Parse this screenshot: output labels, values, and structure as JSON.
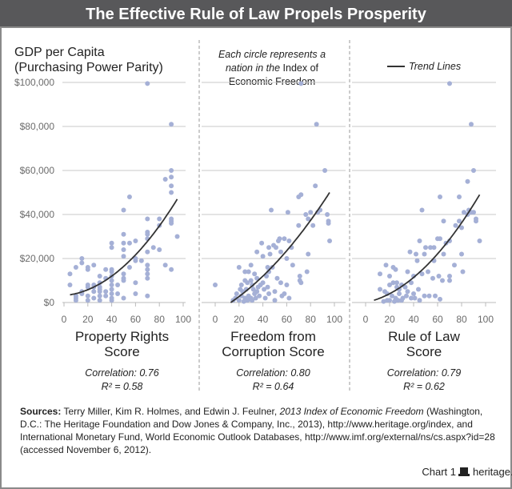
{
  "title": "The Effective Rule of Law Propels Prosperity",
  "colors": {
    "title_bar": "#58585a",
    "dots": "#a5b0d6",
    "trend": "#333333",
    "grid": "#c8c8c8",
    "border": "#8a8a8a"
  },
  "y_axis_label": [
    "GDP per Capita",
    "(Purchasing Power Parity)"
  ],
  "note": {
    "line1": "Each circle represents a",
    "line2_italic": "nation in the ",
    "line2_roman": "Index of",
    "line3": "Economic Freedom"
  },
  "legend": {
    "label": "Trend Lines"
  },
  "sources": {
    "label": "Sources:",
    "text1": " Terry Miller, Kim R. Holmes, and Edwin J. Feulner, ",
    "title": "2013 Index of Economic Freedom",
    "text2": " (Washington, D.C.: The Heritage Foundation and Dow Jones & Company, Inc., 2013), http://www.heritage.org/index, and International Monetary Fund, World Economic Outlook Databases, http://www.imf.org/external/ns/cs.aspx?id=28 (accessed November 6, 2012)."
  },
  "footer": {
    "chart_label": "Chart 1",
    "site": "heritage.org"
  },
  "chart_data": [
    {
      "type": "scatter",
      "xlabel": [
        "Property Rights",
        "Score"
      ],
      "ylabel": "GDP per Capita (Purchasing Power Parity)",
      "correlation": "Correlation: 0.76",
      "r2": "R² = 0.58",
      "xlim": [
        0,
        100
      ],
      "ylim": [
        0,
        100000
      ],
      "x_ticks": [
        "0",
        "20",
        "40",
        "60",
        "80",
        "100"
      ],
      "y_ticks": [
        "$0",
        "$20,000",
        "$40,000",
        "$60,000",
        "$80,000",
        "$100,000"
      ],
      "grid": true,
      "trend": {
        "type": "quadratic",
        "coef": [
          3160,
          46,
          4.37
        ],
        "x_range": [
          5,
          95
        ]
      },
      "points": [
        [
          70,
          99500
        ],
        [
          90,
          81000
        ],
        [
          90,
          60000
        ],
        [
          90,
          57000
        ],
        [
          85,
          56000
        ],
        [
          55,
          48000
        ],
        [
          50,
          42000
        ],
        [
          90,
          53000
        ],
        [
          90,
          50000
        ],
        [
          70,
          38000
        ],
        [
          80,
          38000
        ],
        [
          80,
          35000
        ],
        [
          90,
          38000
        ],
        [
          90,
          37000
        ],
        [
          90,
          36000
        ],
        [
          95,
          30000
        ],
        [
          55,
          27000
        ],
        [
          60,
          28000
        ],
        [
          50,
          31000
        ],
        [
          50,
          27000
        ],
        [
          40,
          27000
        ],
        [
          40,
          25000
        ],
        [
          75,
          25000
        ],
        [
          80,
          24000
        ],
        [
          70,
          31000
        ],
        [
          70,
          32000
        ],
        [
          70,
          29000
        ],
        [
          70,
          23000
        ],
        [
          50,
          24000
        ],
        [
          50,
          21000
        ],
        [
          60,
          20000
        ],
        [
          60,
          19000
        ],
        [
          65,
          19000
        ],
        [
          85,
          17000
        ],
        [
          90,
          15000
        ],
        [
          40,
          15000
        ],
        [
          40,
          14000
        ],
        [
          55,
          16000
        ],
        [
          50,
          13000
        ],
        [
          50,
          11000
        ],
        [
          50,
          10000
        ],
        [
          60,
          9000
        ],
        [
          60,
          4000
        ],
        [
          70,
          17000
        ],
        [
          70,
          15000
        ],
        [
          70,
          13000
        ],
        [
          70,
          11000
        ],
        [
          70,
          3000
        ],
        [
          45,
          8000
        ],
        [
          45,
          4000
        ],
        [
          50,
          2000
        ],
        [
          15,
          20000
        ],
        [
          15,
          18000
        ],
        [
          20,
          16000
        ],
        [
          20,
          15000
        ],
        [
          25,
          17000
        ],
        [
          30,
          12000
        ],
        [
          35,
          11000
        ],
        [
          35,
          15000
        ],
        [
          40,
          12000
        ],
        [
          40,
          10000
        ],
        [
          40,
          8000
        ],
        [
          40,
          6000
        ],
        [
          40,
          4000
        ],
        [
          40,
          2000
        ],
        [
          40,
          1000
        ],
        [
          30,
          9000
        ],
        [
          30,
          7000
        ],
        [
          30,
          5000
        ],
        [
          30,
          3000
        ],
        [
          30,
          1000
        ],
        [
          25,
          8000
        ],
        [
          25,
          7000
        ],
        [
          25,
          5000
        ],
        [
          25,
          2000
        ],
        [
          20,
          8000
        ],
        [
          20,
          7000
        ],
        [
          20,
          3000
        ],
        [
          20,
          1000
        ],
        [
          15,
          5000
        ],
        [
          15,
          4000
        ],
        [
          10,
          2000
        ],
        [
          10,
          1000
        ],
        [
          10,
          3000
        ],
        [
          35,
          5000
        ],
        [
          35,
          3000
        ],
        [
          5,
          13000
        ],
        [
          5,
          8000
        ],
        [
          10,
          16000
        ],
        [
          30,
          6000
        ]
      ]
    },
    {
      "type": "scatter",
      "xlabel": [
        "Freedom from",
        "Corruption Score"
      ],
      "correlation": "Correlation: 0.80",
      "r2": "R² = 0.64",
      "xlim": [
        0,
        100
      ],
      "ylim": [
        0,
        100000
      ],
      "x_ticks": [
        "0",
        "20",
        "40",
        "60",
        "80",
        "100"
      ],
      "grid": true,
      "trend": {
        "type": "quadratic",
        "coef": [
          -4310,
          295,
          2.82
        ],
        "x_range": [
          13,
          96
        ]
      },
      "points": [
        [
          0,
          8000
        ],
        [
          72,
          99500
        ],
        [
          85,
          81000
        ],
        [
          92,
          60000
        ],
        [
          84,
          53000
        ],
        [
          70,
          48000
        ],
        [
          72,
          49000
        ],
        [
          47,
          42000
        ],
        [
          61,
          41000
        ],
        [
          76,
          40000
        ],
        [
          80,
          41000
        ],
        [
          86,
          41000
        ],
        [
          88,
          42000
        ],
        [
          94,
          40000
        ],
        [
          95,
          37000
        ],
        [
          95,
          36000
        ],
        [
          78,
          38000
        ],
        [
          82,
          35000
        ],
        [
          70,
          35000
        ],
        [
          58,
          29000
        ],
        [
          53,
          28000
        ],
        [
          54,
          29000
        ],
        [
          62,
          28000
        ],
        [
          39,
          27000
        ],
        [
          45,
          25000
        ],
        [
          49,
          26000
        ],
        [
          51,
          25000
        ],
        [
          64,
          25000
        ],
        [
          35,
          23000
        ],
        [
          40,
          21000
        ],
        [
          55,
          23000
        ],
        [
          46,
          22000
        ],
        [
          60,
          20000
        ],
        [
          78,
          22000
        ],
        [
          96,
          28000
        ],
        [
          65,
          17000
        ],
        [
          30,
          17000
        ],
        [
          20,
          16000
        ],
        [
          25,
          14000
        ],
        [
          28,
          14000
        ],
        [
          33,
          13000
        ],
        [
          44,
          16000
        ],
        [
          45,
          14000
        ],
        [
          48,
          16000
        ],
        [
          43,
          12000
        ],
        [
          52,
          11000
        ],
        [
          55,
          9000
        ],
        [
          60,
          8000
        ],
        [
          71,
          12000
        ],
        [
          71,
          10000
        ],
        [
          77,
          14000
        ],
        [
          72,
          9000
        ],
        [
          25,
          10000
        ],
        [
          30,
          10000
        ],
        [
          35,
          11000
        ],
        [
          22,
          8000
        ],
        [
          27,
          9000
        ],
        [
          31,
          8000
        ],
        [
          38,
          8000
        ],
        [
          41,
          6000
        ],
        [
          45,
          4000
        ],
        [
          50,
          5000
        ],
        [
          56,
          3000
        ],
        [
          58,
          4000
        ],
        [
          18,
          4000
        ],
        [
          22,
          3000
        ],
        [
          25,
          2000
        ],
        [
          28,
          3000
        ],
        [
          30,
          2000
        ],
        [
          33,
          4000
        ],
        [
          35,
          5000
        ],
        [
          37,
          3000
        ],
        [
          20,
          1000
        ],
        [
          24,
          500
        ],
        [
          27,
          1000
        ],
        [
          29,
          1500
        ],
        [
          31,
          1000
        ],
        [
          34,
          2000
        ],
        [
          15,
          1000
        ],
        [
          17,
          2000
        ],
        [
          23,
          5000
        ],
        [
          26,
          6000
        ],
        [
          32,
          6000
        ],
        [
          36,
          7000
        ],
        [
          40,
          9000
        ],
        [
          44,
          7000
        ],
        [
          50,
          1000
        ],
        [
          62,
          2000
        ],
        [
          21,
          6000
        ],
        [
          42,
          2000
        ]
      ]
    },
    {
      "type": "scatter",
      "xlabel": [
        "Rule of Law",
        "Score"
      ],
      "correlation": "Correlation: 0.79",
      "r2": "R² = 0.62",
      "xlim": [
        0,
        100
      ],
      "ylim": [
        0,
        100000
      ],
      "x_ticks": [
        "0",
        "20",
        "40",
        "60",
        "80",
        "100"
      ],
      "grid": true,
      "trend": {
        "type": "quadratic",
        "coef": [
          -30,
          118,
          4.19
        ],
        "x_range": [
          7,
          95
        ]
      },
      "points": [
        [
          70,
          99500
        ],
        [
          88,
          81000
        ],
        [
          90,
          60000
        ],
        [
          85,
          55000
        ],
        [
          62,
          48000
        ],
        [
          78,
          48000
        ],
        [
          47,
          42000
        ],
        [
          82,
          41000
        ],
        [
          85,
          40000
        ],
        [
          86,
          42000
        ],
        [
          88,
          41000
        ],
        [
          90,
          41000
        ],
        [
          92,
          38000
        ],
        [
          92,
          37000
        ],
        [
          65,
          37000
        ],
        [
          78,
          37000
        ],
        [
          75,
          35000
        ],
        [
          80,
          34000
        ],
        [
          45,
          28000
        ],
        [
          60,
          29000
        ],
        [
          62,
          29000
        ],
        [
          67,
          27000
        ],
        [
          70,
          28000
        ],
        [
          50,
          25000
        ],
        [
          54,
          25000
        ],
        [
          57,
          25000
        ],
        [
          37,
          23000
        ],
        [
          42,
          22000
        ],
        [
          49,
          22000
        ],
        [
          65,
          22000
        ],
        [
          95,
          28000
        ],
        [
          80,
          22000
        ],
        [
          43,
          19000
        ],
        [
          57,
          19000
        ],
        [
          17,
          17000
        ],
        [
          23,
          16000
        ],
        [
          25,
          15000
        ],
        [
          74,
          17000
        ],
        [
          81,
          14000
        ],
        [
          12,
          13000
        ],
        [
          20,
          12000
        ],
        [
          35,
          14000
        ],
        [
          40,
          12000
        ],
        [
          47,
          13000
        ],
        [
          56,
          11000
        ],
        [
          61,
          12000
        ],
        [
          64,
          10000
        ],
        [
          70,
          12000
        ],
        [
          70,
          10000
        ],
        [
          52,
          14000
        ],
        [
          12,
          6000
        ],
        [
          16,
          5000
        ],
        [
          20,
          8000
        ],
        [
          23,
          9000
        ],
        [
          26,
          9000
        ],
        [
          30,
          8000
        ],
        [
          33,
          7000
        ],
        [
          38,
          9000
        ],
        [
          44,
          6000
        ],
        [
          49,
          3000
        ],
        [
          53,
          3000
        ],
        [
          58,
          3000
        ],
        [
          62,
          1500
        ],
        [
          45,
          1000
        ],
        [
          18,
          4000
        ],
        [
          22,
          3000
        ],
        [
          25,
          2000
        ],
        [
          28,
          4000
        ],
        [
          30,
          1000
        ],
        [
          34,
          3000
        ],
        [
          38,
          2000
        ],
        [
          41,
          2000
        ],
        [
          20,
          1000
        ],
        [
          24,
          500
        ],
        [
          27,
          1000
        ],
        [
          31,
          2000
        ],
        [
          15,
          500
        ],
        [
          18,
          1000
        ],
        [
          28,
          6000
        ],
        [
          35,
          5000
        ],
        [
          40,
          4000
        ],
        [
          26,
          7000
        ]
      ]
    }
  ]
}
